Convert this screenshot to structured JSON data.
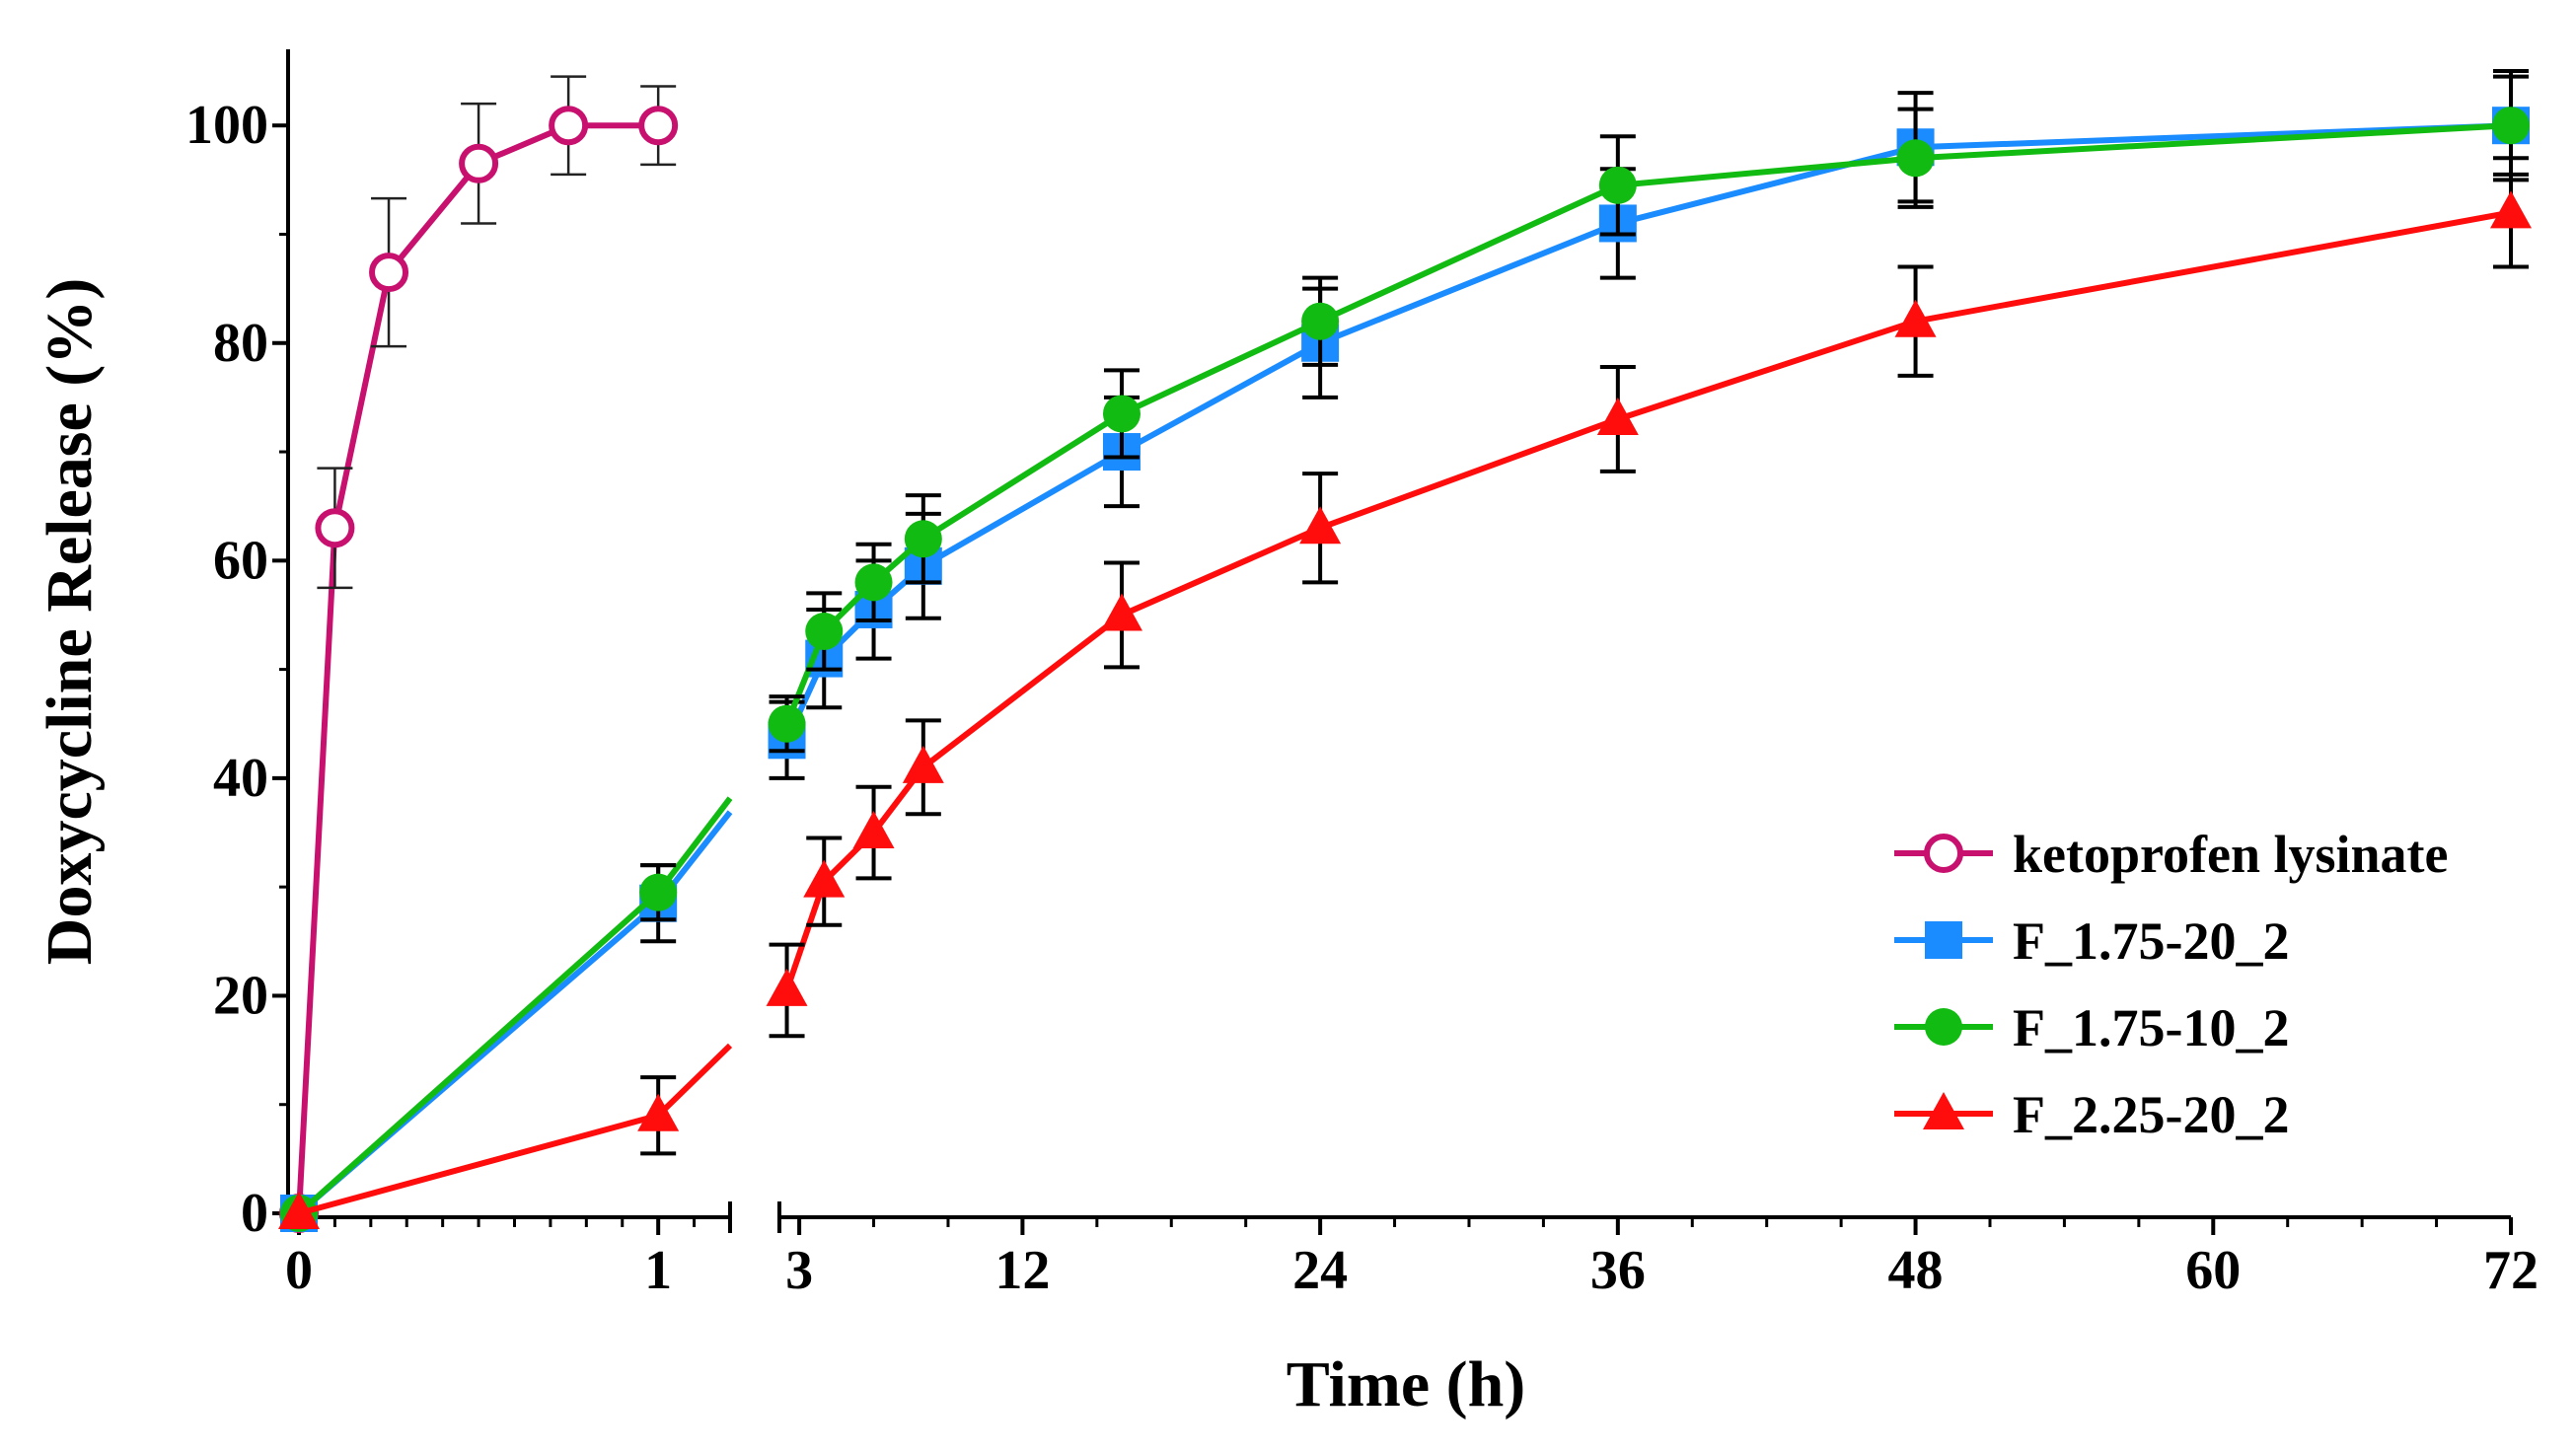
{
  "chart_data": {
    "type": "line",
    "title": "",
    "xlabel": "Time (h)",
    "ylabel": "Doxycycline Release (%)",
    "ylim": [
      0,
      107
    ],
    "y_ticks": [
      0,
      20,
      40,
      60,
      80,
      100
    ],
    "x_segments": [
      {
        "range": [
          0,
          1.2
        ],
        "ticks": [
          0,
          1
        ],
        "tick_labels": [
          "0",
          "1"
        ],
        "minor_step": 0.1
      },
      {
        "range": [
          2.2,
          72
        ],
        "ticks": [
          3,
          12,
          24,
          36,
          48,
          60,
          72
        ],
        "tick_labels": [
          "3",
          "12",
          "24",
          "36",
          "48",
          "60",
          "72"
        ],
        "minor_step": 3
      }
    ],
    "series": [
      {
        "name": "ketoprofen lysinate",
        "color": "#c8106e",
        "marker": "open-circle",
        "x": [
          0,
          0.1,
          0.25,
          0.5,
          0.75,
          1
        ],
        "values": [
          0,
          63,
          86.5,
          96.5,
          100,
          100
        ],
        "errors": [
          0,
          5.5,
          6.8,
          5.5,
          4.5,
          3.6
        ]
      },
      {
        "name": "F_1.75-20_2",
        "color": "#1a8cff",
        "marker": "square",
        "x": [
          0,
          1,
          2.5,
          4,
          6,
          8,
          16,
          24,
          36,
          48,
          72
        ],
        "values": [
          0,
          28.5,
          43.5,
          51,
          55.5,
          59.5,
          70,
          80,
          91,
          98,
          100
        ],
        "errors": [
          0,
          3.5,
          3.5,
          4.5,
          4.5,
          4.8,
          5,
          5,
          5,
          5,
          5
        ]
      },
      {
        "name": "F_1.75-10_2",
        "color": "#11bb11",
        "marker": "filled-circle",
        "x": [
          0,
          1,
          2.5,
          4,
          6,
          8,
          16,
          24,
          36,
          48,
          72
        ],
        "values": [
          0,
          29.5,
          45,
          53.5,
          58,
          62,
          73.5,
          82,
          94.5,
          97,
          100
        ],
        "errors": [
          0,
          2.5,
          2.5,
          3.5,
          3.5,
          4,
          4,
          4,
          4.5,
          4.5,
          4.5
        ]
      },
      {
        "name": "F_2.25-20_2",
        "color": "#ff0d0d",
        "marker": "triangle",
        "x": [
          0,
          1,
          2.5,
          4,
          6,
          8,
          16,
          24,
          36,
          48,
          72
        ],
        "values": [
          0,
          9,
          20.5,
          30.5,
          35,
          41,
          55,
          63,
          73,
          82,
          92
        ],
        "errors": [
          0,
          3.5,
          4.2,
          4,
          4.2,
          4.3,
          4.8,
          5,
          4.8,
          5,
          5
        ]
      }
    ],
    "legend": {
      "position": "bottom-right"
    }
  }
}
